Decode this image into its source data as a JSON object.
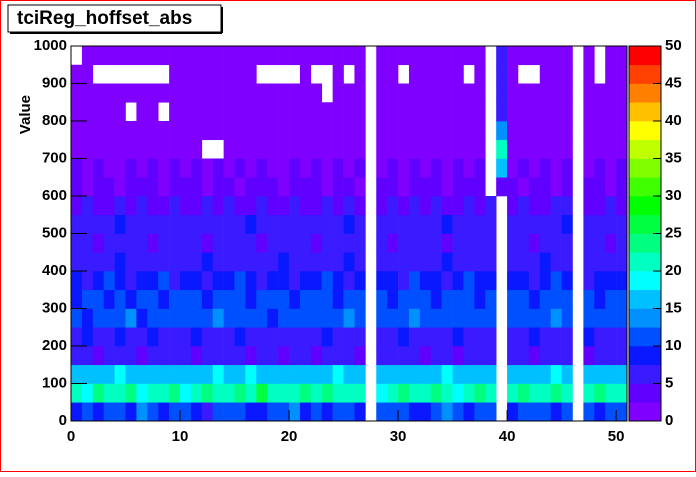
{
  "chart_data": {
    "type": "heatmap",
    "title": "tciReg_hoffset_abs",
    "y_label": "Value",
    "xlim": [
      0,
      51
    ],
    "ylim": [
      0,
      1000
    ],
    "xticks": [
      0,
      10,
      20,
      30,
      40,
      50
    ],
    "yticks": [
      0,
      100,
      200,
      300,
      400,
      500,
      600,
      700,
      800,
      900,
      1000
    ],
    "zlim": [
      0,
      50
    ],
    "zticks": [
      0,
      5,
      10,
      15,
      20,
      25,
      30,
      35,
      40,
      45,
      50
    ],
    "palette": [
      "#8000ff",
      "#6000ff",
      "#3a1aff",
      "#0a18ff",
      "#0050ff",
      "#0090ff",
      "#00c0ff",
      "#00ffff",
      "#00ffc0",
      "#00ff80",
      "#00ff40",
      "#00ff00",
      "#40ff00",
      "#80ff00",
      "#c0ff00",
      "#ffff00",
      "#ffc000",
      "#ff8000",
      "#ff4000",
      "#ff0000"
    ],
    "xbins": [
      0,
      1,
      2,
      3,
      4,
      5,
      6,
      7,
      8,
      9,
      10,
      11,
      12,
      13,
      14,
      15,
      16,
      17,
      18,
      19,
      20,
      21,
      22,
      23,
      24,
      25,
      26,
      27,
      28,
      29,
      30,
      31,
      32,
      33,
      34,
      35,
      36,
      37,
      38,
      39,
      40,
      41,
      42,
      43,
      44,
      45,
      46,
      47,
      48,
      49,
      50,
      51
    ],
    "ybins": [
      0,
      50,
      100,
      150,
      200,
      250,
      300,
      350,
      400,
      450,
      500,
      550,
      600,
      650,
      700,
      750,
      800,
      850,
      900,
      950,
      1000
    ],
    "z": [
      [
        9,
        11,
        8,
        12,
        10,
        9,
        13,
        11,
        8,
        10,
        12,
        9,
        7,
        10,
        11,
        12,
        9,
        8,
        10,
        11,
        13,
        9,
        10,
        8,
        11,
        12,
        9,
        null,
        10,
        12,
        11,
        9,
        8,
        10,
        13,
        11,
        9,
        10,
        12,
        null,
        8,
        10,
        11,
        12,
        9,
        10,
        null,
        11,
        9,
        12,
        10
      ],
      [
        21,
        19,
        23,
        22,
        20,
        24,
        18,
        22,
        21,
        23,
        19,
        22,
        24,
        20,
        21,
        23,
        22,
        25,
        21,
        20,
        22,
        23,
        21,
        24,
        20,
        22,
        21,
        null,
        19,
        22,
        23,
        20,
        21,
        24,
        22,
        19,
        21,
        23,
        20,
        null,
        22,
        24,
        21,
        20,
        23,
        22,
        null,
        21,
        24,
        20,
        22
      ],
      [
        16,
        15,
        17,
        16,
        18,
        15,
        16,
        17,
        15,
        16,
        17,
        16,
        15,
        18,
        16,
        17,
        19,
        16,
        15,
        17,
        16,
        15,
        17,
        16,
        18,
        16,
        15,
        null,
        17,
        16,
        15,
        17,
        16,
        15,
        18,
        17,
        16,
        15,
        17,
        null,
        16,
        17,
        15,
        16,
        18,
        16,
        null,
        17,
        15,
        16,
        17
      ],
      [
        6,
        5,
        4,
        7,
        5,
        6,
        4,
        5,
        7,
        6,
        5,
        4,
        6,
        5,
        7,
        5,
        4,
        6,
        5,
        4,
        5,
        6,
        4,
        5,
        6,
        5,
        4,
        null,
        5,
        6,
        7,
        5,
        4,
        6,
        5,
        4,
        6,
        5,
        7,
        null,
        5,
        6,
        4,
        5,
        6,
        5,
        null,
        4,
        6,
        5,
        6
      ],
      [
        7,
        9,
        6,
        5,
        8,
        7,
        6,
        9,
        5,
        7,
        6,
        8,
        7,
        5,
        6,
        9,
        7,
        6,
        5,
        7,
        6,
        5,
        7,
        8,
        6,
        7,
        5,
        null,
        6,
        7,
        8,
        6,
        5,
        7,
        6,
        9,
        7,
        6,
        5,
        null,
        7,
        6,
        8,
        5,
        7,
        6,
        null,
        8,
        6,
        7,
        5
      ],
      [
        11,
        9,
        12,
        10,
        11,
        13,
        9,
        11,
        10,
        12,
        11,
        12,
        10,
        13,
        11,
        10,
        12,
        11,
        9,
        12,
        11,
        10,
        12,
        11,
        10,
        13,
        11,
        null,
        12,
        10,
        11,
        13,
        12,
        10,
        11,
        12,
        10,
        11,
        12,
        null,
        11,
        10,
        12,
        11,
        13,
        10,
        null,
        11,
        12,
        10,
        11
      ],
      [
        9,
        11,
        10,
        8,
        11,
        9,
        10,
        12,
        9,
        10,
        11,
        10,
        9,
        12,
        10,
        11,
        9,
        10,
        11,
        10,
        9,
        11,
        10,
        12,
        9,
        10,
        11,
        null,
        10,
        9,
        11,
        12,
        10,
        9,
        11,
        10,
        12,
        9,
        10,
        null,
        10,
        11,
        9,
        10,
        12,
        11,
        null,
        10,
        9,
        11,
        10
      ],
      [
        8,
        7,
        9,
        10,
        8,
        7,
        9,
        8,
        10,
        7,
        9,
        8,
        7,
        9,
        8,
        10,
        8,
        7,
        9,
        8,
        7,
        9,
        8,
        10,
        8,
        7,
        9,
        null,
        8,
        9,
        7,
        10,
        8,
        9,
        7,
        8,
        10,
        9,
        8,
        null,
        9,
        8,
        7,
        9,
        10,
        8,
        null,
        7,
        9,
        8,
        9
      ],
      [
        6,
        7,
        5,
        6,
        8,
        6,
        5,
        7,
        6,
        7,
        5,
        6,
        8,
        7,
        5,
        6,
        7,
        6,
        5,
        8,
        6,
        7,
        5,
        6,
        7,
        8,
        6,
        null,
        5,
        7,
        6,
        5,
        7,
        6,
        8,
        6,
        5,
        7,
        6,
        null,
        7,
        6,
        5,
        8,
        6,
        7,
        null,
        6,
        5,
        7,
        6
      ],
      [
        5,
        6,
        4,
        5,
        7,
        5,
        6,
        4,
        5,
        6,
        7,
        5,
        4,
        6,
        5,
        5,
        6,
        4,
        7,
        5,
        6,
        5,
        4,
        6,
        5,
        7,
        5,
        null,
        6,
        4,
        5,
        6,
        5,
        7,
        4,
        6,
        5,
        6,
        5,
        null,
        6,
        5,
        4,
        6,
        7,
        5,
        null,
        5,
        6,
        4,
        5
      ],
      [
        6,
        5,
        7,
        6,
        8,
        6,
        5,
        7,
        6,
        5,
        7,
        6,
        5,
        6,
        7,
        5,
        8,
        6,
        5,
        7,
        6,
        5,
        7,
        6,
        5,
        8,
        6,
        null,
        7,
        5,
        6,
        7,
        5,
        6,
        8,
        6,
        5,
        7,
        6,
        null,
        5,
        7,
        6,
        5,
        6,
        8,
        null,
        6,
        7,
        5,
        6
      ],
      [
        4,
        5,
        3,
        4,
        6,
        4,
        5,
        3,
        4,
        5,
        3,
        4,
        5,
        4,
        6,
        4,
        3,
        5,
        4,
        4,
        5,
        3,
        4,
        6,
        4,
        5,
        4,
        null,
        3,
        5,
        4,
        6,
        4,
        5,
        3,
        4,
        5,
        4,
        6,
        null,
        4,
        5,
        3,
        4,
        5,
        6,
        null,
        4,
        3,
        5,
        4
      ],
      [
        3,
        2,
        4,
        3,
        2,
        3,
        4,
        3,
        2,
        3,
        4,
        3,
        2,
        3,
        4,
        2,
        3,
        3,
        4,
        2,
        3,
        4,
        3,
        2,
        3,
        4,
        2,
        null,
        3,
        4,
        2,
        3,
        4,
        3,
        2,
        3,
        4,
        3,
        null,
        4,
        3,
        2,
        4,
        3,
        2,
        3,
        null,
        4,
        3,
        2,
        3
      ],
      [
        3,
        2,
        3,
        2,
        1,
        3,
        2,
        3,
        2,
        3,
        2,
        3,
        2,
        3,
        2,
        3,
        2,
        3,
        2,
        2,
        3,
        2,
        3,
        2,
        3,
        2,
        3,
        null,
        2,
        3,
        2,
        3,
        2,
        3,
        2,
        3,
        2,
        3,
        null,
        16,
        2,
        3,
        2,
        3,
        2,
        3,
        null,
        2,
        3,
        2,
        3
      ],
      [
        2,
        2,
        1,
        2,
        2,
        1,
        2,
        2,
        1,
        2,
        2,
        2,
        null,
        null,
        2,
        2,
        1,
        2,
        2,
        2,
        1,
        2,
        2,
        2,
        1,
        2,
        2,
        null,
        2,
        2,
        1,
        2,
        2,
        1,
        2,
        2,
        2,
        1,
        null,
        22,
        2,
        1,
        2,
        2,
        2,
        1,
        null,
        2,
        2,
        1,
        2
      ],
      [
        1,
        1,
        2,
        1,
        2,
        1,
        2,
        1,
        2,
        1,
        1,
        1,
        2,
        2,
        1,
        1,
        1,
        1,
        2,
        1,
        1,
        2,
        1,
        1,
        2,
        1,
        1,
        null,
        1,
        2,
        1,
        1,
        2,
        1,
        1,
        2,
        1,
        1,
        null,
        14,
        1,
        2,
        1,
        1,
        2,
        1,
        null,
        2,
        1,
        1,
        1
      ],
      [
        2,
        1,
        1,
        2,
        1,
        null,
        2,
        1,
        null,
        2,
        1,
        2,
        1,
        1,
        2,
        1,
        1,
        2,
        1,
        1,
        2,
        1,
        1,
        2,
        1,
        1,
        2,
        null,
        1,
        1,
        2,
        1,
        1,
        2,
        1,
        1,
        2,
        1,
        null,
        7,
        1,
        2,
        1,
        1,
        1,
        2,
        null,
        1,
        2,
        1,
        1
      ],
      [
        1,
        1,
        2,
        1,
        1,
        1,
        2,
        1,
        1,
        1,
        1,
        1,
        1,
        2,
        1,
        1,
        1,
        1,
        1,
        1,
        1,
        1,
        1,
        null,
        1,
        1,
        1,
        null,
        1,
        1,
        1,
        1,
        1,
        1,
        1,
        1,
        1,
        1,
        null,
        6,
        1,
        1,
        1,
        1,
        1,
        1,
        null,
        1,
        1,
        1,
        1
      ],
      [
        1,
        1,
        null,
        null,
        null,
        null,
        null,
        null,
        null,
        1,
        1,
        1,
        1,
        1,
        1,
        1,
        1,
        null,
        null,
        null,
        null,
        1,
        null,
        null,
        1,
        null,
        1,
        null,
        1,
        1,
        null,
        1,
        1,
        1,
        1,
        1,
        null,
        1,
        null,
        6,
        1,
        null,
        null,
        1,
        1,
        1,
        null,
        1,
        null,
        1,
        1
      ],
      [
        null,
        1,
        1,
        1,
        1,
        1,
        1,
        1,
        1,
        1,
        1,
        1,
        1,
        1,
        1,
        1,
        1,
        1,
        1,
        1,
        1,
        1,
        1,
        1,
        1,
        1,
        1,
        null,
        1,
        1,
        1,
        1,
        1,
        1,
        1,
        1,
        1,
        1,
        null,
        5,
        1,
        1,
        1,
        1,
        1,
        1,
        null,
        1,
        null,
        1,
        1
      ]
    ]
  }
}
